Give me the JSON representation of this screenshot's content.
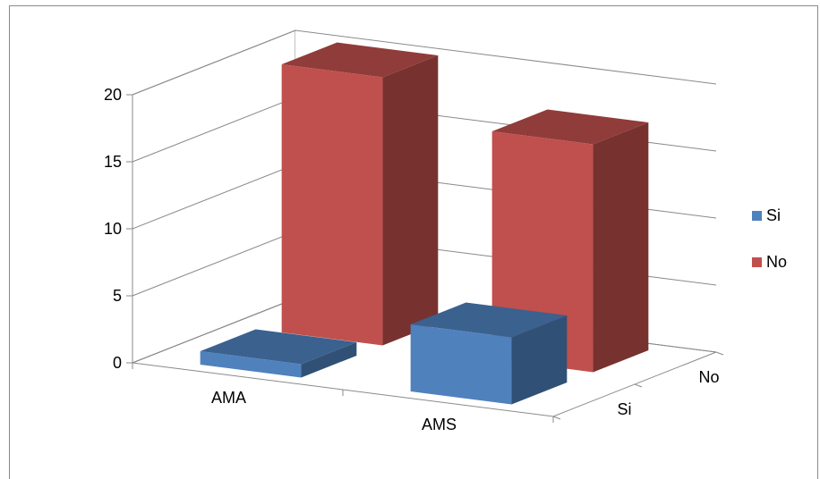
{
  "chart_data": {
    "type": "bar",
    "categories": [
      "AMA",
      "AMS"
    ],
    "depth_categories": [
      "Si",
      "No"
    ],
    "series": [
      {
        "name": "Si",
        "values": [
          1,
          5
        ],
        "color": "#4f81bd"
      },
      {
        "name": "No",
        "values": [
          20,
          17
        ],
        "color": "#c0504d"
      }
    ],
    "ylim": [
      0,
      20
    ],
    "yticks": [
      "0",
      "5",
      "10",
      "15",
      "20"
    ],
    "grid": true,
    "legend": "right",
    "chart_style": "3d-column"
  }
}
